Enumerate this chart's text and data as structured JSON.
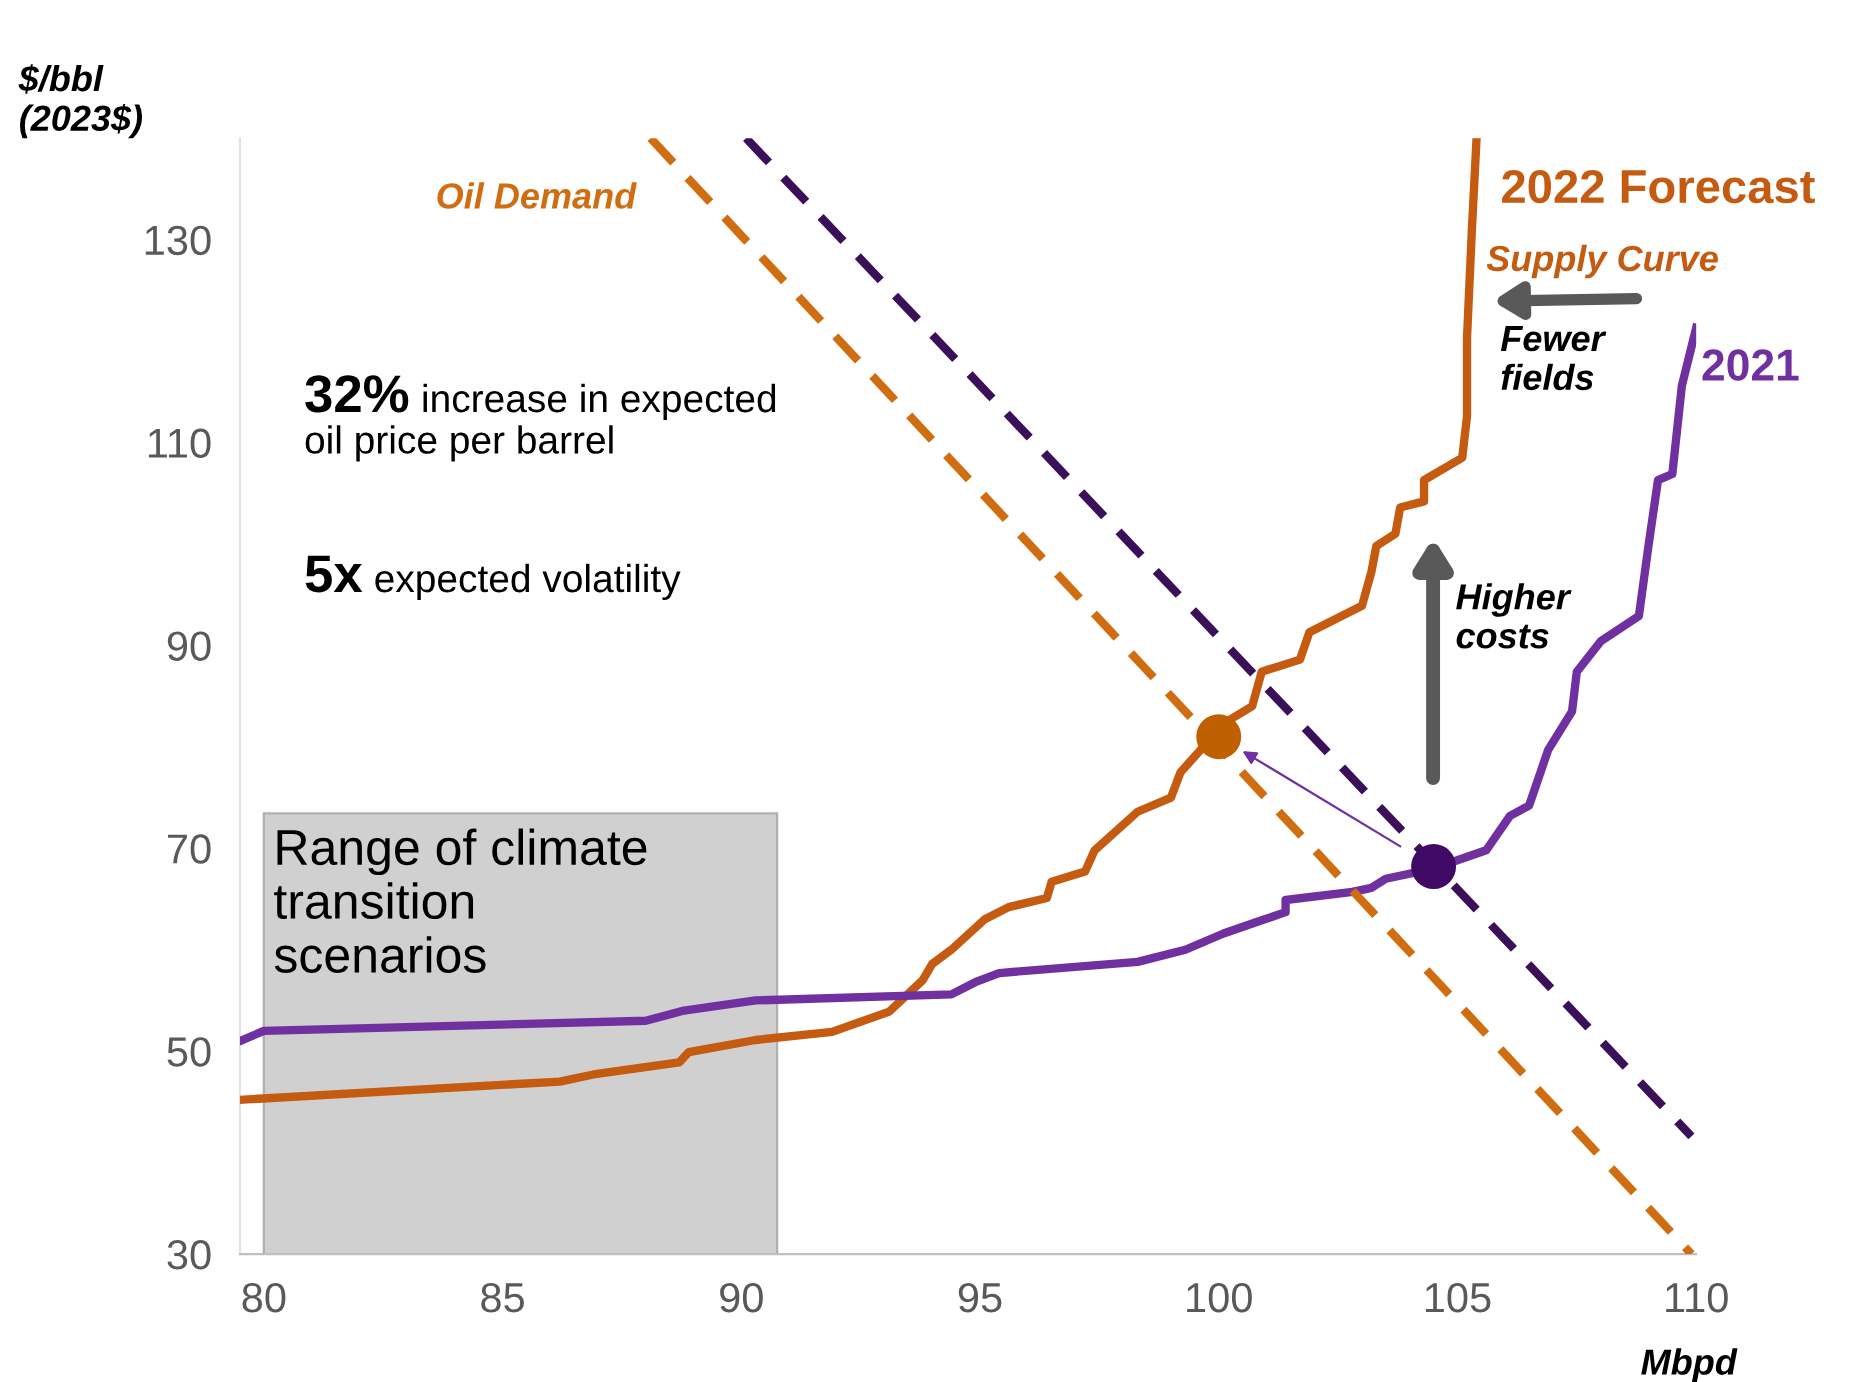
{
  "chart_data": {
    "type": "line",
    "ylabel": "$/bbl\n(2023$)",
    "xlabel": "Mbpd",
    "xlim": [
      79.5,
      110
    ],
    "ylim": [
      30,
      140
    ],
    "xticks": [
      80,
      85,
      90,
      95,
      100,
      105,
      110
    ],
    "yticks": [
      30,
      50,
      70,
      90,
      110,
      130
    ],
    "grid": false,
    "bands": [
      {
        "axis": "x",
        "from": 80,
        "to": 90.75,
        "label": "Range of climate\ntransition\nscenarios",
        "color": "#d0d0d0"
      }
    ],
    "series": [
      {
        "name": "2022 Forecast",
        "color": "#c55a11",
        "line_style": "solid",
        "x": [
          79.5,
          86.2,
          86.9,
          88.7,
          88.9,
          90.3,
          91.9,
          93.1,
          93.8,
          94.0,
          94.4,
          95.1,
          95.6,
          96.4,
          96.5,
          97.2,
          97.4,
          98.3,
          99.0,
          99.2,
          99.85,
          100.1,
          100.7,
          100.9,
          101.7,
          101.9,
          103.0,
          103.2,
          103.3,
          103.7,
          103.8,
          104.3,
          104.3,
          105.1,
          105.2,
          105.2,
          105.3,
          105.4
        ],
        "values": [
          45.2,
          47,
          47.7,
          48.9,
          49.9,
          51.1,
          51.9,
          53.9,
          57,
          58.6,
          60,
          63,
          64.2,
          65.1,
          66.7,
          67.7,
          69.8,
          73.6,
          75,
          77.5,
          80.9,
          82.3,
          84,
          87.4,
          88.6,
          91.3,
          93.9,
          97.3,
          99.8,
          101,
          103.6,
          104.2,
          106.3,
          108.5,
          112.6,
          120.3,
          130.8,
          140
        ]
      },
      {
        "name": "2021",
        "color": "#7030a0",
        "line_style": "solid",
        "x": [
          79.5,
          80,
          88,
          88.8,
          90.3,
          94.4,
          94.9,
          95.4,
          98.3,
          99.3,
          100.1,
          100.9,
          101.4,
          101.4,
          102.8,
          103.2,
          103.5,
          104.5,
          105.6,
          106.1,
          106.5,
          106.9,
          107.4,
          107.5,
          108,
          108.8,
          109,
          109.2,
          109.5,
          109.7,
          110
        ],
        "values": [
          51,
          52,
          53,
          54,
          55,
          55.6,
          56.8,
          57.7,
          58.8,
          60,
          61.6,
          62.9,
          63.7,
          64.9,
          65.7,
          66.1,
          67,
          68,
          69.8,
          73.2,
          74.2,
          79.7,
          83.5,
          87.4,
          90.4,
          92.9,
          99.8,
          106.3,
          106.9,
          115.6,
          121.3
        ]
      },
      {
        "name": "Oil Demand",
        "color": "#d06d10",
        "line_style": "dashed",
        "x": [
          88.1,
          109.9
        ],
        "values": [
          140,
          30
        ]
      },
      {
        "color": "#3b1058",
        "line_style": "dashed",
        "x": [
          90.1,
          109.9
        ],
        "values": [
          140,
          41.6
        ]
      },
      {
        "type": "scatter",
        "color": "#c05f00",
        "marker": "circle",
        "x": [
          100
        ],
        "values": [
          81
        ]
      },
      {
        "type": "scatter",
        "color": "#3f0a66",
        "marker": "circle",
        "x": [
          104.5
        ],
        "values": [
          68.2
        ]
      }
    ],
    "annotations": [
      "32% increase in expected\noil price per barrel",
      "5x expected volatility",
      "Supply Curve",
      "Higher\ncosts",
      "Fewer\nfields"
    ]
  }
}
